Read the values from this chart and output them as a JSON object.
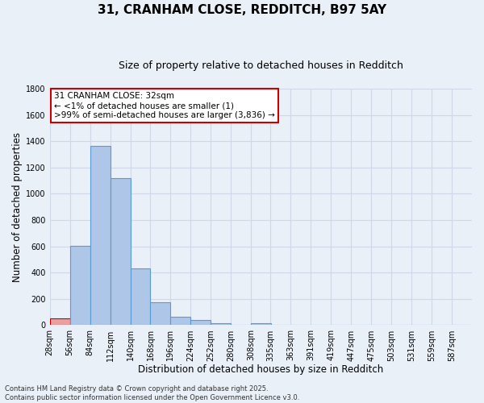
{
  "title_line1": "31, CRANHAM CLOSE, REDDITCH, B97 5AY",
  "title_line2": "Size of property relative to detached houses in Redditch",
  "xlabel": "Distribution of detached houses by size in Redditch",
  "ylabel": "Number of detached properties",
  "bins": [
    28,
    56,
    84,
    112,
    140,
    168,
    196,
    224,
    252,
    280,
    308,
    335,
    363,
    391,
    419,
    447,
    475,
    503,
    531,
    559,
    587
  ],
  "bin_labels": [
    "28sqm",
    "56sqm",
    "84sqm",
    "112sqm",
    "140sqm",
    "168sqm",
    "196sqm",
    "224sqm",
    "252sqm",
    "280sqm",
    "308sqm",
    "335sqm",
    "363sqm",
    "391sqm",
    "419sqm",
    "447sqm",
    "475sqm",
    "503sqm",
    "531sqm",
    "559sqm",
    "587sqm"
  ],
  "heights": [
    50,
    603,
    1367,
    1120,
    430,
    175,
    65,
    40,
    15,
    0,
    15,
    0,
    0,
    0,
    0,
    0,
    0,
    0,
    0,
    0,
    0
  ],
  "bar_color": "#aec6e8",
  "bar_edge_color": "#5b9bd5",
  "highlight_bar_index": 0,
  "highlight_color": "#e8a0a0",
  "highlight_edge_color": "#cc0000",
  "ylim": [
    0,
    1800
  ],
  "yticks": [
    0,
    200,
    400,
    600,
    800,
    1000,
    1200,
    1400,
    1600,
    1800
  ],
  "grid_color": "#d0d8e8",
  "background_color": "#eaf0f8",
  "annotation_text": "31 CRANHAM CLOSE: 32sqm\n← <1% of detached houses are smaller (1)\n>99% of semi-detached houses are larger (3,836) →",
  "annotation_box_color": "#ffffff",
  "annotation_border_color": "#cc0000",
  "footnote": "Contains HM Land Registry data © Crown copyright and database right 2025.\nContains public sector information licensed under the Open Government Licence v3.0.",
  "title_fontsize": 11,
  "subtitle_fontsize": 9,
  "tick_fontsize": 7,
  "xlabel_fontsize": 8.5,
  "ylabel_fontsize": 8.5,
  "annot_fontsize": 7.5,
  "footnote_fontsize": 6
}
